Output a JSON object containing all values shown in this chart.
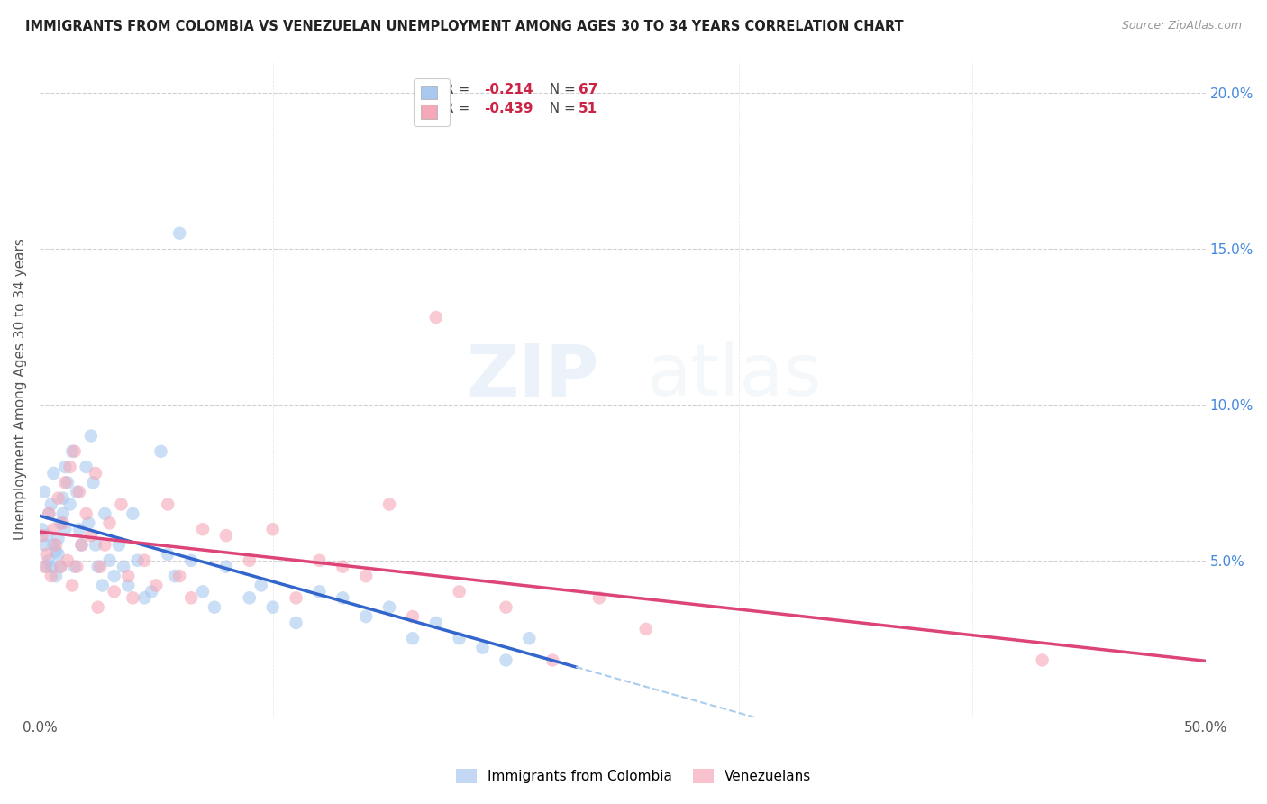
{
  "title": "IMMIGRANTS FROM COLOMBIA VS VENEZUELAN UNEMPLOYMENT AMONG AGES 30 TO 34 YEARS CORRELATION CHART",
  "source": "Source: ZipAtlas.com",
  "ylabel": "Unemployment Among Ages 30 to 34 years",
  "xlim": [
    0.0,
    0.5
  ],
  "ylim": [
    0.0,
    0.21
  ],
  "xticks": [
    0.0,
    0.1,
    0.2,
    0.3,
    0.4,
    0.5
  ],
  "xticklabels": [
    "0.0%",
    "",
    "",
    "",
    "",
    "50.0%"
  ],
  "yticks_right": [
    0.05,
    0.1,
    0.15,
    0.2
  ],
  "yticklabels_right": [
    "5.0%",
    "10.0%",
    "15.0%",
    "20.0%"
  ],
  "colombia_color": "#a8c8f0",
  "venezuela_color": "#f5a8b8",
  "colombia_line_color": "#3366cc",
  "venezuela_line_color": "#dd4477",
  "colombia_dash_color": "#aaccee",
  "legend_r_colombia": "-0.214",
  "legend_n_colombia": "67",
  "legend_r_venezuela": "-0.439",
  "legend_n_venezuela": "51",
  "background_color": "#ffffff",
  "grid_color": "#cccccc",
  "title_color": "#222222",
  "axis_label_color": "#555555",
  "right_tick_color": "#4488dd",
  "colombia_x": [
    0.001,
    0.002,
    0.002,
    0.003,
    0.003,
    0.004,
    0.004,
    0.005,
    0.005,
    0.006,
    0.006,
    0.007,
    0.007,
    0.008,
    0.008,
    0.009,
    0.009,
    0.01,
    0.01,
    0.011,
    0.011,
    0.012,
    0.013,
    0.014,
    0.015,
    0.016,
    0.017,
    0.018,
    0.02,
    0.021,
    0.022,
    0.023,
    0.024,
    0.025,
    0.027,
    0.028,
    0.03,
    0.032,
    0.034,
    0.036,
    0.038,
    0.04,
    0.042,
    0.045,
    0.048,
    0.052,
    0.055,
    0.058,
    0.065,
    0.07,
    0.075,
    0.08,
    0.09,
    0.095,
    0.1,
    0.11,
    0.12,
    0.13,
    0.14,
    0.15,
    0.16,
    0.17,
    0.18,
    0.19,
    0.2,
    0.21,
    0.06
  ],
  "colombia_y": [
    0.06,
    0.055,
    0.072,
    0.058,
    0.048,
    0.065,
    0.05,
    0.068,
    0.048,
    0.055,
    0.078,
    0.053,
    0.045,
    0.057,
    0.052,
    0.062,
    0.048,
    0.07,
    0.065,
    0.06,
    0.08,
    0.075,
    0.068,
    0.085,
    0.048,
    0.072,
    0.06,
    0.055,
    0.08,
    0.062,
    0.09,
    0.075,
    0.055,
    0.048,
    0.042,
    0.065,
    0.05,
    0.045,
    0.055,
    0.048,
    0.042,
    0.065,
    0.05,
    0.038,
    0.04,
    0.085,
    0.052,
    0.045,
    0.05,
    0.04,
    0.035,
    0.048,
    0.038,
    0.042,
    0.035,
    0.03,
    0.04,
    0.038,
    0.032,
    0.035,
    0.025,
    0.03,
    0.025,
    0.022,
    0.018,
    0.025,
    0.155
  ],
  "venezuela_x": [
    0.001,
    0.002,
    0.003,
    0.004,
    0.005,
    0.006,
    0.007,
    0.008,
    0.009,
    0.01,
    0.011,
    0.012,
    0.013,
    0.014,
    0.015,
    0.016,
    0.017,
    0.018,
    0.02,
    0.022,
    0.024,
    0.026,
    0.028,
    0.03,
    0.032,
    0.035,
    0.038,
    0.04,
    0.045,
    0.05,
    0.055,
    0.06,
    0.065,
    0.07,
    0.08,
    0.09,
    0.1,
    0.11,
    0.12,
    0.13,
    0.14,
    0.15,
    0.16,
    0.17,
    0.18,
    0.2,
    0.22,
    0.24,
    0.26,
    0.43,
    0.025
  ],
  "venezuela_y": [
    0.058,
    0.048,
    0.052,
    0.065,
    0.045,
    0.06,
    0.055,
    0.07,
    0.048,
    0.062,
    0.075,
    0.05,
    0.08,
    0.042,
    0.085,
    0.048,
    0.072,
    0.055,
    0.065,
    0.058,
    0.078,
    0.048,
    0.055,
    0.062,
    0.04,
    0.068,
    0.045,
    0.038,
    0.05,
    0.042,
    0.068,
    0.045,
    0.038,
    0.06,
    0.058,
    0.05,
    0.06,
    0.038,
    0.05,
    0.048,
    0.045,
    0.068,
    0.032,
    0.128,
    0.04,
    0.035,
    0.018,
    0.038,
    0.028,
    0.018,
    0.035
  ]
}
